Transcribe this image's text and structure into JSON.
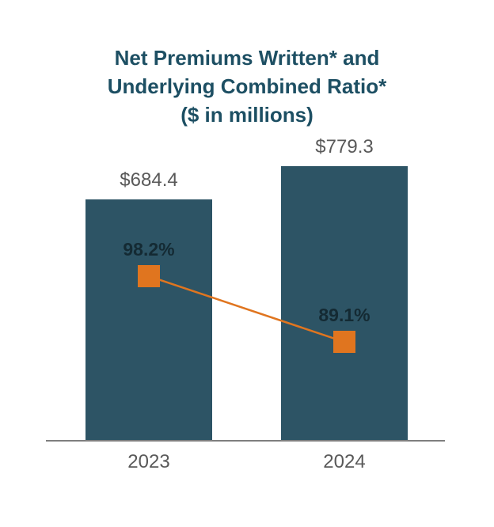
{
  "chart_data": {
    "type": "bar",
    "title": "Net Premiums Written* and Underlying Combined Ratio* ($ in millions)",
    "title_lines": [
      "Net Premiums Written* and",
      "Underlying Combined Ratio*",
      "($ in millions)"
    ],
    "categories": [
      "2023",
      "2024"
    ],
    "series": [
      {
        "name": "Net Premiums Written ($ in millions)",
        "type": "bar",
        "values": [
          684.4,
          779.3
        ],
        "labels": [
          "$684.4",
          "$779.3"
        ]
      },
      {
        "name": "Underlying Combined Ratio",
        "type": "line",
        "values": [
          98.2,
          89.1
        ],
        "labels": [
          "98.2%",
          "89.1%"
        ]
      }
    ],
    "legend": "none",
    "grid": false,
    "colors": {
      "bar": "#2d5465",
      "line": "#e0751f",
      "title": "#1d4f63",
      "value_label": "#595959",
      "ratio_label": "#142a33",
      "category_label": "#595959",
      "axis": "#7f7f7f"
    }
  }
}
